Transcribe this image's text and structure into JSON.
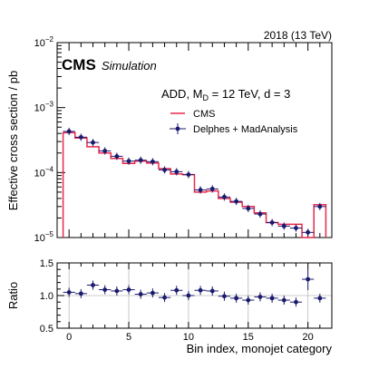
{
  "header": {
    "lumi_label": "2018 (13 TeV)",
    "experiment": "CMS",
    "status": "Simulation"
  },
  "legend": {
    "model_prefix": "ADD, M",
    "model_sub": "D",
    "model_suffix": " = 12 TeV, d = 3",
    "entries": [
      "CMS",
      "Delphes + MadAnalysis"
    ]
  },
  "colors": {
    "hist": "#e8294c",
    "points": "#1a1a6e",
    "grid": "#bbbbbb"
  },
  "chart_data": [
    {
      "type": "histogram",
      "ylabel": "Effective cross section / pb",
      "xlim": [
        -1,
        22
      ],
      "ylim": [
        1e-05,
        0.01
      ],
      "yscale": "log",
      "yticks": [
        {
          "base": "10",
          "exp": "−5",
          "value": 1e-05
        },
        {
          "base": "10",
          "exp": "−4",
          "value": 0.0001
        },
        {
          "base": "10",
          "exp": "−3",
          "value": 0.001
        },
        {
          "base": "10",
          "exp": "−2",
          "value": 0.01
        }
      ],
      "bins": [
        0,
        1,
        2,
        3,
        4,
        5,
        6,
        7,
        8,
        9,
        10,
        11,
        12,
        13,
        14,
        15,
        16,
        17,
        18,
        19,
        20,
        21
      ],
      "series": [
        {
          "name": "CMS",
          "style": "step",
          "values": [
            0.00041,
            0.00034,
            0.00025,
            0.0002,
            0.000165,
            0.000138,
            0.00015,
            0.00014,
            0.000115,
            9.5e-05,
            9.3e-05,
            5e-05,
            5.2e-05,
            4e-05,
            3.5e-05,
            3e-05,
            2.4e-05,
            1.7e-05,
            1.6e-05,
            1.6e-05,
            1e-05,
            3.2e-05
          ]
        },
        {
          "name": "Delphes + MadAnalysis",
          "style": "points",
          "values": [
            0.00043,
            0.00035,
            0.00029,
            0.000215,
            0.000178,
            0.00015,
            0.000155,
            0.000147,
            0.00011,
            0.000103,
            9.3e-05,
            5.4e-05,
            5.6e-05,
            4.2e-05,
            3.6e-05,
            2.8e-05,
            2.3e-05,
            1.7e-05,
            1.5e-05,
            1.4e-05,
            1.2e-05,
            3e-05
          ]
        }
      ]
    },
    {
      "type": "scatter",
      "xlabel": "Bin index, monojet category",
      "ylabel": "Ratio",
      "xlim": [
        -1,
        22
      ],
      "ylim": [
        0.5,
        1.5
      ],
      "xticks": [
        0,
        5,
        10,
        15,
        20
      ],
      "yticks": [
        0.5,
        1.0,
        1.5
      ],
      "ytick_labels": [
        "0.5",
        "1.0",
        "1.5"
      ],
      "x": [
        0,
        1,
        2,
        3,
        4,
        5,
        6,
        7,
        8,
        9,
        10,
        11,
        12,
        13,
        14,
        15,
        16,
        17,
        18,
        19,
        20,
        21
      ],
      "values": [
        1.05,
        1.03,
        1.16,
        1.09,
        1.07,
        1.09,
        1.02,
        1.04,
        0.97,
        1.08,
        1.0,
        1.08,
        1.07,
        0.99,
        0.96,
        0.93,
        0.98,
        0.96,
        0.93,
        0.9,
        1.25,
        0.96
      ],
      "grid": true
    }
  ]
}
